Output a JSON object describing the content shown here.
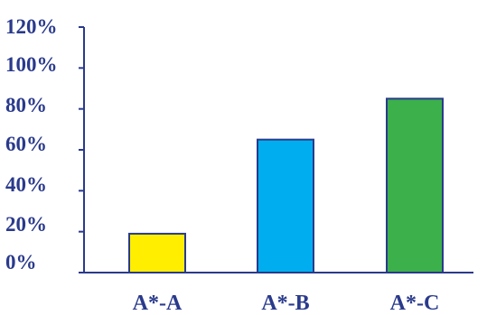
{
  "chart_data": {
    "type": "bar",
    "categories": [
      "A*-A",
      "A*-B",
      "A*-C"
    ],
    "values": [
      19,
      65,
      85
    ],
    "colors": [
      "#ffee00",
      "#00aeef",
      "#3cb04a"
    ],
    "bar_outline_color": "#2a3a8c",
    "axis_color": "#2a3a8c",
    "text_color": "#2a3a8c",
    "y_tick_labels": [
      "0%",
      "20%",
      "40%",
      "60%",
      "80%",
      "100%",
      "120%"
    ],
    "y_ticks": [
      0,
      20,
      40,
      60,
      80,
      100,
      120
    ],
    "ylim": [
      0,
      120
    ],
    "title": "",
    "xlabel": "",
    "ylabel": "",
    "grid": false,
    "legend": false
  }
}
